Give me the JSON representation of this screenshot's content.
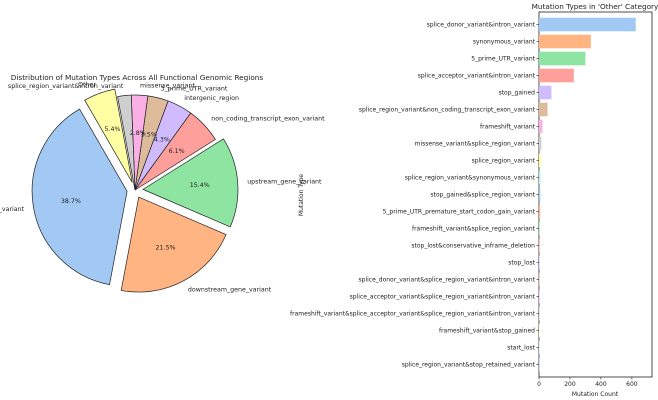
{
  "chart_data": [
    {
      "type": "pie",
      "title": "Distribution of Mutation Types Across All Functional Genomic Regions",
      "slices": [
        {
          "label": "intron_variant",
          "value": 38.7,
          "pct_label": "38.7%",
          "color": "#a1c9f4",
          "explode": true
        },
        {
          "label": "downstream_gene_variant",
          "value": 21.5,
          "pct_label": "21.5%",
          "color": "#ffb482",
          "explode": true
        },
        {
          "label": "upstream_gene_variant",
          "value": 15.4,
          "pct_label": "15.4%",
          "color": "#8de5a1",
          "explode": true
        },
        {
          "label": "non_coding_transcript_exon_variant",
          "value": 6.1,
          "pct_label": "6.1%",
          "color": "#ff9f9b",
          "explode": false
        },
        {
          "label": "intergenic_region",
          "value": 4.3,
          "pct_label": "4.3%",
          "color": "#d0bbff",
          "explode": false
        },
        {
          "label": "3_prime_UTR_variant",
          "value": 3.5,
          "pct_label": "3.5%",
          "color": "#debb9b",
          "explode": false
        },
        {
          "label": "missense_variant",
          "value": 2.8,
          "pct_label": "2.8%",
          "color": "#fab0e4",
          "explode": false
        },
        {
          "label": "splice_region_variant&intron_variant",
          "value": 2.3,
          "pct_label": "",
          "color": "#cfcfcf",
          "explode": false
        },
        {
          "label": "Other",
          "value": 5.4,
          "pct_label": "5.4%",
          "color": "#fffea3",
          "explode": true
        }
      ]
    },
    {
      "type": "bar",
      "orientation": "horizontal",
      "title": "Mutation Types in 'Other' Category",
      "xlabel": "Mutation Count",
      "ylabel": "Mutation Type",
      "xlim": [
        0,
        730
      ],
      "xticks": [
        0,
        200,
        400,
        600
      ],
      "categories": [
        "splice_donor_variant&intron_variant",
        "synonymous_variant",
        "5_prime_UTR_variant",
        "splice_acceptor_variant&intron_variant",
        "stop_gained",
        "splice_region_variant&non_coding_transcript_exon_variant",
        "frameshift_variant",
        "missense_variant&splice_region_variant",
        "splice_region_variant",
        "splice_region_variant&synonymous_variant",
        "stop_gained&splice_region_variant",
        "5_prime_UTR_premature_start_codon_gain_variant",
        "frameshift_variant&splice_region_variant",
        "stop_lost&conservative_inframe_deletion",
        "stop_lost",
        "splice_donor_variant&splice_region_variant&intron_variant",
        "splice_acceptor_variant&splice_region_variant&intron_variant",
        "frameshift_variant&splice_acceptor_variant&splice_region_variant&intron_variant",
        "frameshift_variant&stop_gained",
        "start_lost",
        "splice_region_variant&stop_retained_variant"
      ],
      "values": [
        625,
        335,
        300,
        225,
        80,
        55,
        22,
        15,
        12,
        10,
        9,
        8,
        3,
        2,
        2,
        1,
        1,
        1,
        1,
        1,
        1
      ],
      "colors": [
        "#a1c9f4",
        "#ffb482",
        "#8de5a1",
        "#ff9f9b",
        "#d0bbff",
        "#debb9b",
        "#fab0e4",
        "#cfcfcf",
        "#fffea3",
        "#b9f2f0",
        "#a1c9f4",
        "#ffb482",
        "#8de5a1",
        "#ff9f9b",
        "#d0bbff",
        "#debb9b",
        "#fab0e4",
        "#cfcfcf",
        "#fffea3",
        "#b9f2f0",
        "#a1c9f4"
      ]
    }
  ]
}
